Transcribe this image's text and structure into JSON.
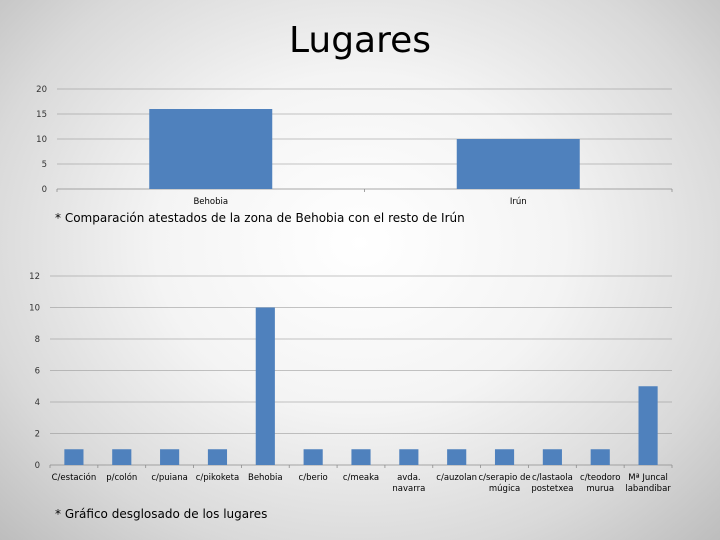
{
  "slide": {
    "title": "Lugares",
    "caption_top": "* Comparación atestados de la zona de Behobia con el resto de Irún",
    "caption_bottom": "* Gráfico desglosado de los lugares",
    "bar_color": "#4F81BD"
  },
  "chart_data": [
    {
      "type": "bar",
      "categories": [
        "Behobia",
        "Irún"
      ],
      "values": [
        16,
        10
      ],
      "ylim": [
        0,
        20
      ],
      "yticks": [
        0,
        5,
        10,
        15,
        20
      ],
      "grid": true
    },
    {
      "type": "bar",
      "categories": [
        "C/estación",
        "p/colón",
        "c/puiana",
        "c/pikoketa",
        "Behobia",
        "c/berio",
        "c/meaka",
        "avda. navarra",
        "c/auzolan",
        "c/serapio de múgica",
        "c/lastaola postetxea",
        "c/teodoro murua",
        "Mª Juncal labandibar"
      ],
      "values": [
        1,
        1,
        1,
        1,
        10,
        1,
        1,
        1,
        1,
        1,
        1,
        1,
        5
      ],
      "ylim": [
        0,
        12
      ],
      "yticks": [
        0,
        2,
        4,
        6,
        8,
        10,
        12
      ],
      "grid": true
    }
  ]
}
